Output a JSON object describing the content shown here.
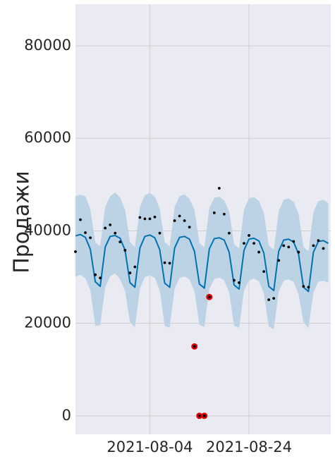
{
  "chart_data": {
    "type": "line",
    "title": "",
    "xlabel": "",
    "ylabel": "Продажи",
    "ylim": [
      -4000,
      89000
    ],
    "xlim": [
      "2021-07-20",
      "2021-09-09"
    ],
    "grid": true,
    "legend": "none",
    "x_ticks": [
      "2021-08-04",
      "2021-08-24"
    ],
    "y_ticks": [
      0,
      20000,
      40000,
      60000,
      80000
    ],
    "colors": {
      "background": "#eaeaf2",
      "grid": "#cccccc",
      "forecast_line": "#0072b2",
      "interval_fill": "#bcd3e6",
      "observed_point": "#000000",
      "anomaly_point": "#e00000"
    },
    "series": [
      {
        "kind": "forecast",
        "x": [
          "2021-07-20",
          "2021-07-21",
          "2021-07-22",
          "2021-07-23",
          "2021-07-24",
          "2021-07-25",
          "2021-07-26",
          "2021-07-27",
          "2021-07-28",
          "2021-07-29",
          "2021-07-30",
          "2021-07-31",
          "2021-08-01",
          "2021-08-02",
          "2021-08-03",
          "2021-08-04",
          "2021-08-05",
          "2021-08-06",
          "2021-08-07",
          "2021-08-08",
          "2021-08-09",
          "2021-08-10",
          "2021-08-11",
          "2021-08-12",
          "2021-08-13",
          "2021-08-14",
          "2021-08-15",
          "2021-08-16",
          "2021-08-17",
          "2021-08-18",
          "2021-08-19",
          "2021-08-20",
          "2021-08-21",
          "2021-08-22",
          "2021-08-23",
          "2021-08-24",
          "2021-08-25",
          "2021-08-26",
          "2021-08-27",
          "2021-08-28",
          "2021-08-29",
          "2021-08-30",
          "2021-08-31",
          "2021-09-01",
          "2021-09-02",
          "2021-09-03",
          "2021-09-04",
          "2021-09-05",
          "2021-09-06",
          "2021-09-07",
          "2021-09-08",
          "2021-09-09"
        ],
        "yhat": [
          38900,
          39200,
          38600,
          36000,
          29000,
          28000,
          36500,
          38800,
          39000,
          38400,
          35800,
          28800,
          27800,
          36300,
          38800,
          39100,
          38500,
          35900,
          28700,
          27800,
          36300,
          38600,
          38800,
          38200,
          35600,
          28500,
          27600,
          36100,
          38300,
          38500,
          38000,
          35400,
          28300,
          27400,
          35800,
          38200,
          38400,
          37800,
          35200,
          28000,
          27100,
          35600,
          38000,
          38200,
          37600,
          35000,
          27800,
          26900,
          35400,
          37700,
          37900,
          37300
        ],
        "upper": [
          47500,
          47800,
          47500,
          44700,
          37500,
          36700,
          45200,
          47500,
          48300,
          47200,
          44600,
          37600,
          36500,
          45100,
          47700,
          48200,
          47400,
          44800,
          37600,
          36600,
          45100,
          47500,
          47900,
          46900,
          44500,
          37400,
          36400,
          44900,
          47100,
          47400,
          46600,
          44200,
          37100,
          36200,
          44600,
          47000,
          47300,
          46500,
          43900,
          36800,
          35900,
          44300,
          46700,
          47000,
          46300,
          43700,
          36500,
          35600,
          44100,
          46400,
          46700,
          46000
        ],
        "lower": [
          30000,
          30500,
          29700,
          27200,
          19500,
          19600,
          27800,
          30200,
          30800,
          29500,
          27000,
          20300,
          19100,
          27500,
          30000,
          30400,
          29800,
          27100,
          19400,
          19100,
          27500,
          29800,
          30100,
          29500,
          26900,
          19700,
          19200,
          27400,
          29600,
          29900,
          29300,
          26700,
          19500,
          19000,
          27100,
          29300,
          29700,
          29100,
          26500,
          19300,
          18700,
          26900,
          29200,
          29500,
          29000,
          26300,
          20300,
          18900,
          26700,
          29000,
          29200,
          28800
        ]
      },
      {
        "kind": "observed",
        "points": [
          {
            "x": "2021-07-20",
            "y": 35500
          },
          {
            "x": "2021-07-21",
            "y": 42400
          },
          {
            "x": "2021-07-22",
            "y": 39600
          },
          {
            "x": "2021-07-23",
            "y": 38500
          },
          {
            "x": "2021-07-24",
            "y": 30500
          },
          {
            "x": "2021-07-25",
            "y": 29800
          },
          {
            "x": "2021-07-26",
            "y": 40600
          },
          {
            "x": "2021-07-27",
            "y": 41300
          },
          {
            "x": "2021-07-28",
            "y": 39500
          },
          {
            "x": "2021-07-29",
            "y": 37600
          },
          {
            "x": "2021-07-30",
            "y": 35800
          },
          {
            "x": "2021-07-31",
            "y": 30900
          },
          {
            "x": "2021-08-01",
            "y": 32200
          },
          {
            "x": "2021-08-02",
            "y": 42900
          },
          {
            "x": "2021-08-03",
            "y": 42600
          },
          {
            "x": "2021-08-04",
            "y": 42600
          },
          {
            "x": "2021-08-05",
            "y": 43000
          },
          {
            "x": "2021-08-06",
            "y": 39500
          },
          {
            "x": "2021-08-07",
            "y": 33100
          },
          {
            "x": "2021-08-08",
            "y": 33000
          },
          {
            "x": "2021-08-09",
            "y": 42200
          },
          {
            "x": "2021-08-10",
            "y": 43200
          },
          {
            "x": "2021-08-11",
            "y": 42200
          },
          {
            "x": "2021-08-12",
            "y": 40800
          },
          {
            "x": "2021-08-13",
            "y": 15000
          },
          {
            "x": "2021-08-14",
            "y": 0
          },
          {
            "x": "2021-08-15",
            "y": 0
          },
          {
            "x": "2021-08-16",
            "y": 25700
          },
          {
            "x": "2021-08-17",
            "y": 43900
          },
          {
            "x": "2021-08-18",
            "y": 49200
          },
          {
            "x": "2021-08-19",
            "y": 43600
          },
          {
            "x": "2021-08-20",
            "y": 39500
          },
          {
            "x": "2021-08-21",
            "y": 29300
          },
          {
            "x": "2021-08-22",
            "y": 28800
          },
          {
            "x": "2021-08-23",
            "y": 37300
          },
          {
            "x": "2021-08-24",
            "y": 39000
          },
          {
            "x": "2021-08-25",
            "y": 37300
          },
          {
            "x": "2021-08-26",
            "y": 35400
          },
          {
            "x": "2021-08-27",
            "y": 31200
          },
          {
            "x": "2021-08-28",
            "y": 25100
          },
          {
            "x": "2021-08-29",
            "y": 25400
          },
          {
            "x": "2021-08-30",
            "y": 33600
          },
          {
            "x": "2021-08-31",
            "y": 36800
          },
          {
            "x": "2021-09-01",
            "y": 36500
          },
          {
            "x": "2021-09-02",
            "y": 37700
          },
          {
            "x": "2021-09-03",
            "y": 35400
          },
          {
            "x": "2021-09-04",
            "y": 28000
          },
          {
            "x": "2021-09-05",
            "y": 27800
          },
          {
            "x": "2021-09-06",
            "y": 36800
          },
          {
            "x": "2021-09-07",
            "y": 37900
          },
          {
            "x": "2021-09-08",
            "y": 36200
          }
        ]
      },
      {
        "kind": "anomalies",
        "points": [
          {
            "x": "2021-08-13",
            "y": 15000
          },
          {
            "x": "2021-08-14",
            "y": 0
          },
          {
            "x": "2021-08-15",
            "y": 0
          },
          {
            "x": "2021-08-16",
            "y": 25700
          }
        ]
      }
    ]
  }
}
